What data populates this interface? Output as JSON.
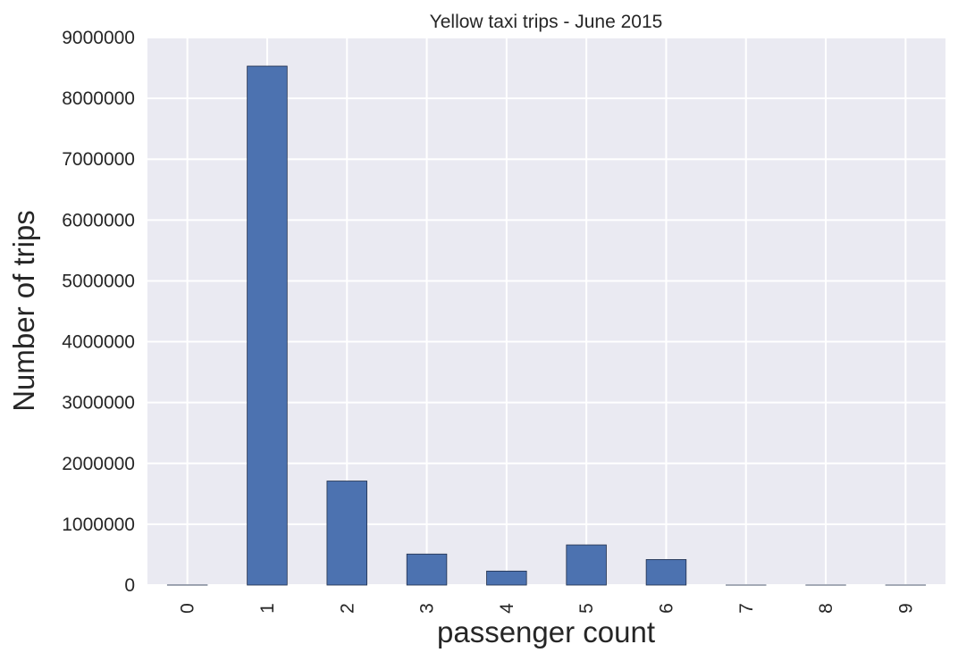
{
  "chart_data": {
    "type": "bar",
    "title": "Yellow taxi trips - June 2015",
    "xlabel": "passenger count",
    "ylabel": "Number of trips",
    "categories": [
      "0",
      "1",
      "2",
      "3",
      "4",
      "5",
      "6",
      "7",
      "8",
      "9"
    ],
    "values": [
      1000,
      8530000,
      1710000,
      510000,
      230000,
      660000,
      420000,
      20,
      20,
      20
    ],
    "ylim": [
      0,
      9000000
    ],
    "yticks": [
      "0",
      "1000000",
      "2000000",
      "3000000",
      "4000000",
      "5000000",
      "6000000",
      "7000000",
      "8000000",
      "9000000"
    ],
    "grid": true,
    "bar_color": "#4c72b0",
    "background_color": "#eaeaf2"
  }
}
